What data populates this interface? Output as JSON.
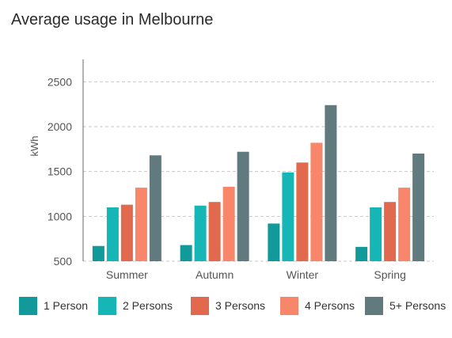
{
  "title": "Average usage in Melbourne",
  "chart_data": {
    "type": "bar",
    "title": "Average usage in Melbourne",
    "xlabel": "",
    "ylabel": "kWh",
    "categories": [
      "Summer",
      "Autumn",
      "Winter",
      "Spring"
    ],
    "ylim": [
      500,
      2750
    ],
    "yticks": [
      500,
      1000,
      1500,
      2000,
      2500
    ],
    "grid": true,
    "legend_position": "bottom",
    "series": [
      {
        "name": "1 Person",
        "color": "#129a9a",
        "values": [
          670,
          680,
          920,
          660
        ]
      },
      {
        "name": "2 Persons",
        "color": "#17b6b6",
        "values": [
          1100,
          1120,
          1490,
          1100
        ]
      },
      {
        "name": "3 Persons",
        "color": "#e0694e",
        "values": [
          1130,
          1160,
          1600,
          1160
        ]
      },
      {
        "name": "4 Persons",
        "color": "#f8866a",
        "values": [
          1320,
          1330,
          1820,
          1320
        ]
      },
      {
        "name": "5+ Persons",
        "color": "#617a7e",
        "values": [
          1680,
          1720,
          2240,
          1700
        ]
      }
    ]
  }
}
